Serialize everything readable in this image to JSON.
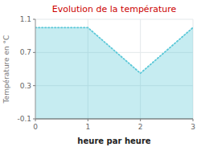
{
  "chart_data": {
    "type": "area",
    "title": "Evolution de la température",
    "x_label": "heure par heure",
    "y_label": "Température en °C",
    "x": [
      0,
      1,
      2,
      3
    ],
    "values": [
      1.0,
      1.0,
      0.45,
      1.0
    ],
    "xlim": [
      0,
      3
    ],
    "ylim": [
      -0.1,
      1.1
    ],
    "xticks": [
      0,
      1,
      2,
      3
    ],
    "yticks": [
      -0.1,
      0.3,
      0.7,
      1.1
    ],
    "color": "#5bc8d8",
    "line_style": "dotted",
    "grid": true
  }
}
